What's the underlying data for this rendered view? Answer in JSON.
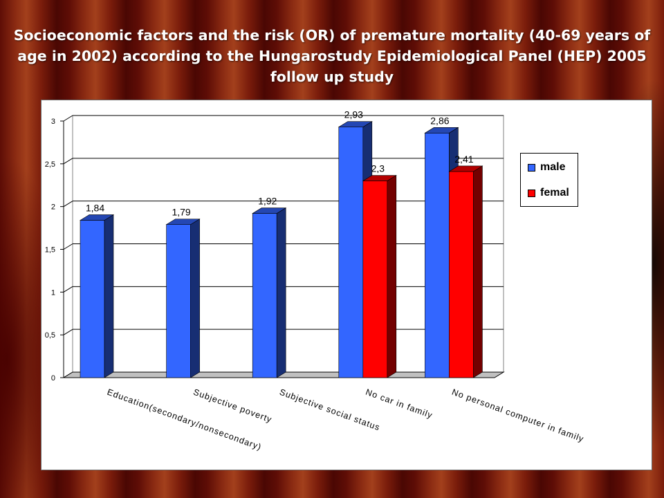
{
  "chart_data": {
    "type": "bar",
    "title": "Socioeconomic factors and the risk (OR) of premature mortality (40-69 years of age in 2002) according to the Hungarostudy Epidemiological Panel (HEP) 2005 follow up study",
    "categories": [
      "Education(secondary/nonsecondary)",
      "Subjective poverty",
      "Subjective social status",
      "No car in family",
      "No personal computer in family"
    ],
    "series": [
      {
        "name": "male",
        "values": [
          1.84,
          1.79,
          1.92,
          2.93,
          2.86
        ],
        "labels": [
          "1,84",
          "1,79",
          "1,92",
          "2,93",
          "2,86"
        ],
        "color": "#3366ff"
      },
      {
        "name": "femal",
        "values": [
          null,
          null,
          null,
          2.3,
          2.41
        ],
        "labels": [
          "",
          "",
          "",
          "2,3",
          "2,41"
        ],
        "color": "#ff0000"
      }
    ],
    "y_ticks": [
      "0",
      "0,5",
      "1",
      "1,5",
      "2",
      "2,5",
      "3"
    ],
    "ylim": [
      0,
      3
    ],
    "xlabel": "",
    "ylabel": "",
    "grid": true,
    "legend": "right"
  }
}
